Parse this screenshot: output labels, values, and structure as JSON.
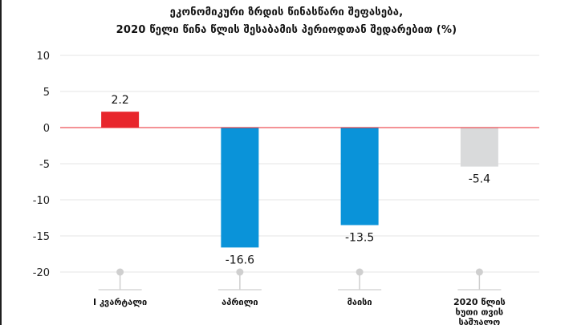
{
  "chart_data": {
    "type": "bar",
    "title": [
      "ეკონომიკური ზრდის წინასწარი შეფასება,",
      "2020 წელი წინა წლის შესაბამის პერიოდთან შედარებით (%)"
    ],
    "categories": [
      [
        "I კვარტალი"
      ],
      [
        "აპრილი"
      ],
      [
        "მაისი"
      ],
      [
        "2020 წლის",
        "ხუთი თვის",
        "საშუალო"
      ]
    ],
    "values": [
      2.2,
      -16.6,
      -13.5,
      -5.4
    ],
    "value_labels": [
      "2.2",
      "-16.6",
      "-13.5",
      "-5.4"
    ],
    "bar_colors": [
      "#e8262c",
      "#0a93d9",
      "#0a93d9",
      "#d9dadb"
    ],
    "ylim": [
      -20,
      10
    ],
    "yticks": [
      10,
      5,
      0,
      -5,
      -10,
      -15,
      -20
    ],
    "ytick_labels": [
      "10",
      "5",
      "0",
      "-5",
      "-10",
      "-15",
      "-20"
    ],
    "xlabel": "",
    "ylabel": "",
    "grid": true,
    "legend": "none",
    "zero_line_color": "#e8262c"
  }
}
